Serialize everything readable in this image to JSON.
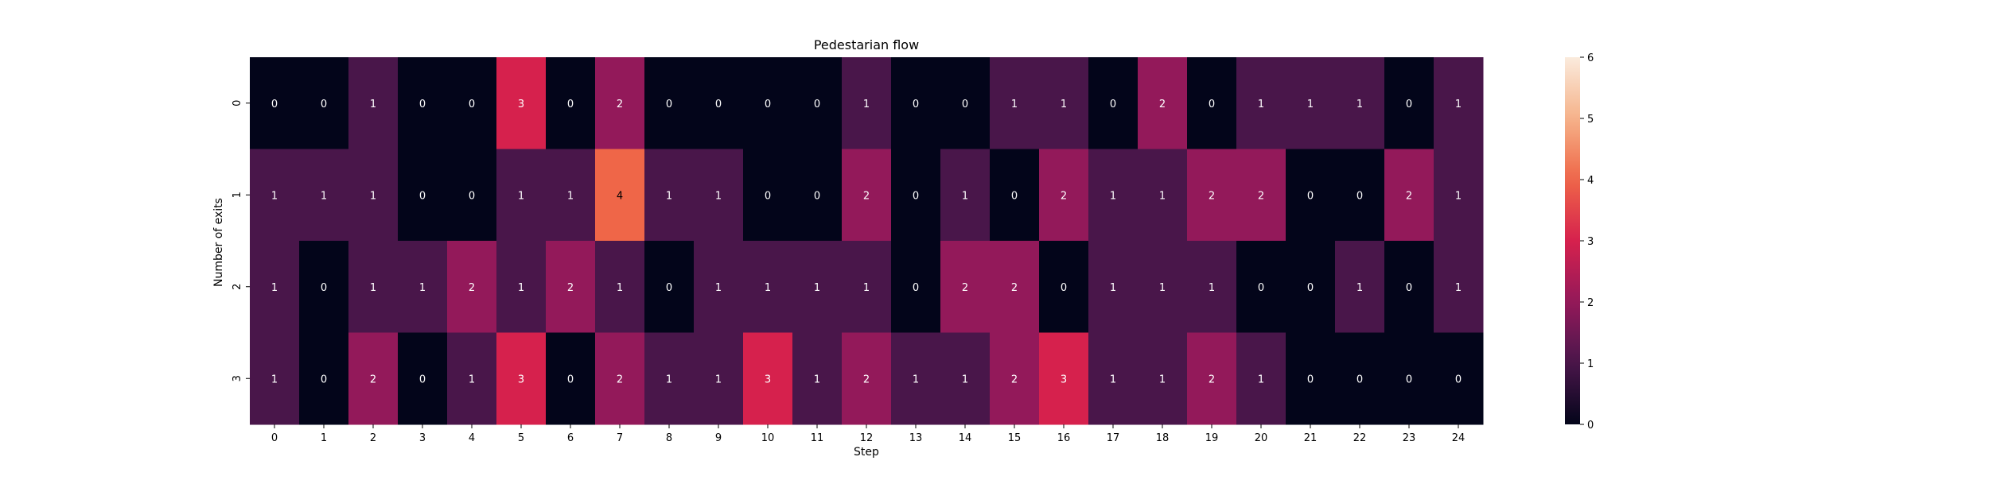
{
  "chart_data": {
    "type": "heatmap",
    "title": "Pedestarian flow",
    "xlabel": "Step",
    "ylabel": "Number of exits",
    "x_ticks": [
      "0",
      "1",
      "2",
      "3",
      "4",
      "5",
      "6",
      "7",
      "8",
      "9",
      "10",
      "11",
      "12",
      "13",
      "14",
      "15",
      "16",
      "17",
      "18",
      "19",
      "20",
      "21",
      "22",
      "23",
      "24"
    ],
    "y_ticks": [
      "0",
      "1",
      "2",
      "3"
    ],
    "values": [
      [
        0,
        0,
        1,
        0,
        0,
        3,
        0,
        2,
        0,
        0,
        0,
        0,
        1,
        0,
        0,
        1,
        1,
        0,
        2,
        0,
        1,
        1,
        1,
        0,
        1
      ],
      [
        1,
        1,
        1,
        0,
        0,
        1,
        1,
        4,
        1,
        1,
        0,
        0,
        2,
        0,
        1,
        0,
        2,
        1,
        1,
        2,
        2,
        0,
        0,
        2,
        1
      ],
      [
        1,
        0,
        1,
        1,
        2,
        1,
        2,
        1,
        0,
        1,
        1,
        1,
        1,
        0,
        2,
        2,
        0,
        1,
        1,
        1,
        0,
        0,
        1,
        0,
        1
      ],
      [
        1,
        0,
        2,
        0,
        1,
        3,
        0,
        2,
        1,
        1,
        3,
        1,
        2,
        1,
        1,
        2,
        3,
        1,
        1,
        2,
        1,
        0,
        0,
        0,
        0
      ]
    ],
    "colorbar": {
      "min": 0,
      "max": 6,
      "ticks": [
        "0",
        "1",
        "2",
        "3",
        "4",
        "5",
        "6"
      ],
      "colormap": "rocket"
    },
    "annotations": true,
    "grid": false
  }
}
